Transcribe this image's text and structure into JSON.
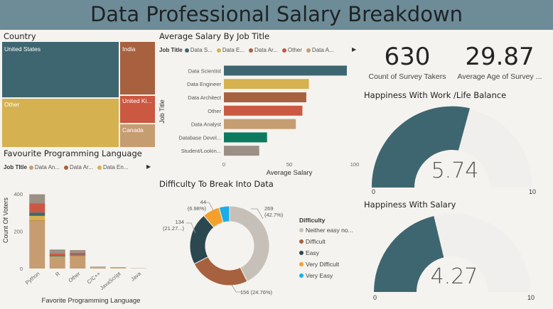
{
  "dashboard_title": "Data Professional Salary Breakdown",
  "country": {
    "title": "Country",
    "tiles": [
      {
        "label": "United States",
        "color": "#3e6670"
      },
      {
        "label": "India",
        "color": "#a7613e"
      },
      {
        "label": "Other",
        "color": "#d5b24f"
      },
      {
        "label": "United Ki...",
        "color": "#cb5840"
      },
      {
        "label": "Canada",
        "color": "#c69c71"
      }
    ]
  },
  "avg_salary": {
    "title": "Average Salary By Job Title",
    "legend_label": "Job Title",
    "legend_items": [
      {
        "label": "Data S...",
        "color": "#3e6670"
      },
      {
        "label": "Data E...",
        "color": "#d5b24f"
      },
      {
        "label": "Data Ar...",
        "color": "#a7613e"
      },
      {
        "label": "Other",
        "color": "#cb5840"
      },
      {
        "label": "Data A...",
        "color": "#c69c71"
      }
    ],
    "y_axis_title": "Job Title",
    "x_axis_title": "Average Salary",
    "x_ticks": [
      "0",
      "50",
      "100"
    ]
  },
  "fav_lang": {
    "title": "Favourite Programming Language",
    "legend_label": "Job TItle",
    "legend_items": [
      {
        "label": "Data An...",
        "color": "#c69c71"
      },
      {
        "label": "Data Ar...",
        "color": "#a7613e"
      },
      {
        "label": "Data En...",
        "color": "#d5b24f"
      }
    ],
    "y_axis_title": "Count Of Voters",
    "x_axis_title": "Favorite Programming Language",
    "y_ticks": [
      "0",
      "200",
      "400"
    ]
  },
  "difficulty": {
    "title": "Difficulty To Break Into Data",
    "legend_title": "Difficulty",
    "labels": [
      {
        "line1": "269",
        "line2": "(42.7%)"
      },
      {
        "line1": "156 (24.76%)",
        "line2": ""
      },
      {
        "line1": "134",
        "line2": "(21.27...)"
      },
      {
        "line1": "44",
        "line2": "(6.98%)"
      }
    ]
  },
  "kpis": {
    "count_value": "630",
    "count_label": "Count of Survey Takers",
    "age_value": "29.87",
    "age_label": "Average Age of Survey ..."
  },
  "gauge_work": {
    "title": "Happiness With Work /Life Balance",
    "value_text": "5.74",
    "min_label": "0",
    "max_label": "10"
  },
  "gauge_salary": {
    "title": "Happiness With Salary",
    "value_text": "4.27",
    "min_label": "0",
    "max_label": "10"
  },
  "chart_data": [
    {
      "type": "bar",
      "orientation": "horizontal",
      "title": "Average Salary By Job Title",
      "xlabel": "Average Salary",
      "ylabel": "Job Title",
      "xlim": [
        0,
        100
      ],
      "categories": [
        "Data Scientist",
        "Data Engineer",
        "Data Architect",
        "Other",
        "Data Analyst",
        "Database Devel...",
        "Student/Lookin..."
      ],
      "values": [
        94,
        65,
        63,
        60,
        55,
        33,
        27
      ],
      "colors": [
        "#3e6670",
        "#d5b24f",
        "#a7613e",
        "#cb5840",
        "#c69c71",
        "#0b7a5e",
        "#9c8f84"
      ]
    },
    {
      "type": "bar",
      "stacked": true,
      "title": "Favourite Programming Language",
      "xlabel": "Favorite Programming Language",
      "ylabel": "Count Of Voters",
      "ylim": [
        0,
        420
      ],
      "categories": [
        "Python",
        "R",
        "Other",
        "C/C++",
        "JavaScript",
        "Java"
      ],
      "series": [
        {
          "name": "Data An...",
          "values": [
            255,
            60,
            65,
            5,
            3,
            1
          ],
          "color": "#c69c71"
        },
        {
          "name": "Data Ar...",
          "values": [
            3,
            2,
            2,
            0,
            0,
            0
          ],
          "color": "#a7613e"
        },
        {
          "name": "Data En...",
          "values": [
            25,
            3,
            3,
            1,
            1,
            0
          ],
          "color": "#d5b24f"
        },
        {
          "name": "",
          "values": [
            18,
            5,
            5,
            0,
            0,
            0
          ],
          "color": "#3e6670"
        },
        {
          "name": "",
          "values": [
            50,
            10,
            10,
            1,
            1,
            0
          ],
          "color": "#cb5840"
        },
        {
          "name": "",
          "values": [
            48,
            22,
            14,
            3,
            2,
            1
          ],
          "color": "#9c8f84"
        }
      ]
    },
    {
      "type": "pie",
      "donut": true,
      "title": "Difficulty To Break Into Data",
      "categories": [
        "Neither easy no...",
        "Difficult",
        "Easy",
        "Very Difficult",
        "Very Easy"
      ],
      "values": [
        269,
        156,
        134,
        44,
        27
      ],
      "colors": [
        "#c7c0b8",
        "#a7613e",
        "#2b4851",
        "#f5a02a",
        "#1aaee8"
      ]
    }
  ]
}
